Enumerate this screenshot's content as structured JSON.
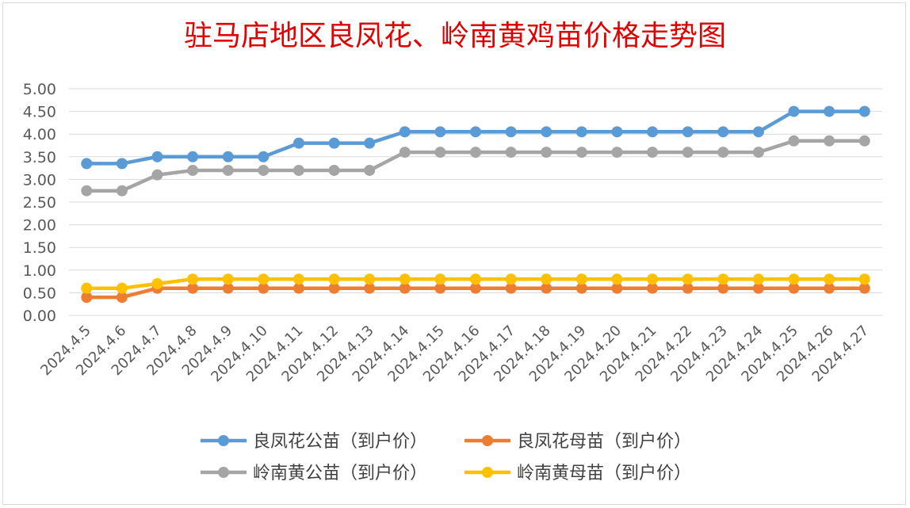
{
  "chart_data": {
    "type": "line",
    "title": "驻马店地区良凤花、岭南黄鸡苗价格走势图",
    "xlabel": "",
    "ylabel": "",
    "ylim": [
      0,
      5
    ],
    "ytick_step": 0.5,
    "ytick_labels": [
      "0.00",
      "0.50",
      "1.00",
      "1.50",
      "2.00",
      "2.50",
      "3.00",
      "3.50",
      "4.00",
      "4.50",
      "5.00"
    ],
    "grid": true,
    "legend_position": "bottom",
    "categories": [
      "2024.4.5",
      "2024.4.6",
      "2024.4.7",
      "2024.4.8",
      "2024.4.9",
      "2024.4.10",
      "2024.4.11",
      "2024.4.12",
      "2024.4.13",
      "2024.4.14",
      "2024.4.15",
      "2024.4.16",
      "2024.4.17",
      "2024.4.18",
      "2024.4.19",
      "2024.4.20",
      "2024.4.21",
      "2024.4.22",
      "2024.4.23",
      "2024.4.24",
      "2024.4.25",
      "2024.4.26",
      "2024.4.27"
    ],
    "series": [
      {
        "name": "良凤花公苗（到户价）",
        "color": "#5b9bd5",
        "values": [
          3.35,
          3.35,
          3.5,
          3.5,
          3.5,
          3.5,
          3.8,
          3.8,
          3.8,
          4.05,
          4.05,
          4.05,
          4.05,
          4.05,
          4.05,
          4.05,
          4.05,
          4.05,
          4.05,
          4.05,
          4.5,
          4.5,
          4.5
        ]
      },
      {
        "name": "良凤花母苗（到户价）",
        "color": "#ed7d31",
        "values": [
          0.4,
          0.4,
          0.6,
          0.6,
          0.6,
          0.6,
          0.6,
          0.6,
          0.6,
          0.6,
          0.6,
          0.6,
          0.6,
          0.6,
          0.6,
          0.6,
          0.6,
          0.6,
          0.6,
          0.6,
          0.6,
          0.6,
          0.6
        ]
      },
      {
        "name": "岭南黄公苗（到户价）",
        "color": "#a5a5a5",
        "values": [
          2.75,
          2.75,
          3.1,
          3.2,
          3.2,
          3.2,
          3.2,
          3.2,
          3.2,
          3.6,
          3.6,
          3.6,
          3.6,
          3.6,
          3.6,
          3.6,
          3.6,
          3.6,
          3.6,
          3.6,
          3.85,
          3.85,
          3.85
        ]
      },
      {
        "name": "岭南黄母苗（到户价）",
        "color": "#ffc000",
        "values": [
          0.6,
          0.6,
          0.7,
          0.8,
          0.8,
          0.8,
          0.8,
          0.8,
          0.8,
          0.8,
          0.8,
          0.8,
          0.8,
          0.8,
          0.8,
          0.8,
          0.8,
          0.8,
          0.8,
          0.8,
          0.8,
          0.8,
          0.8
        ]
      }
    ]
  }
}
